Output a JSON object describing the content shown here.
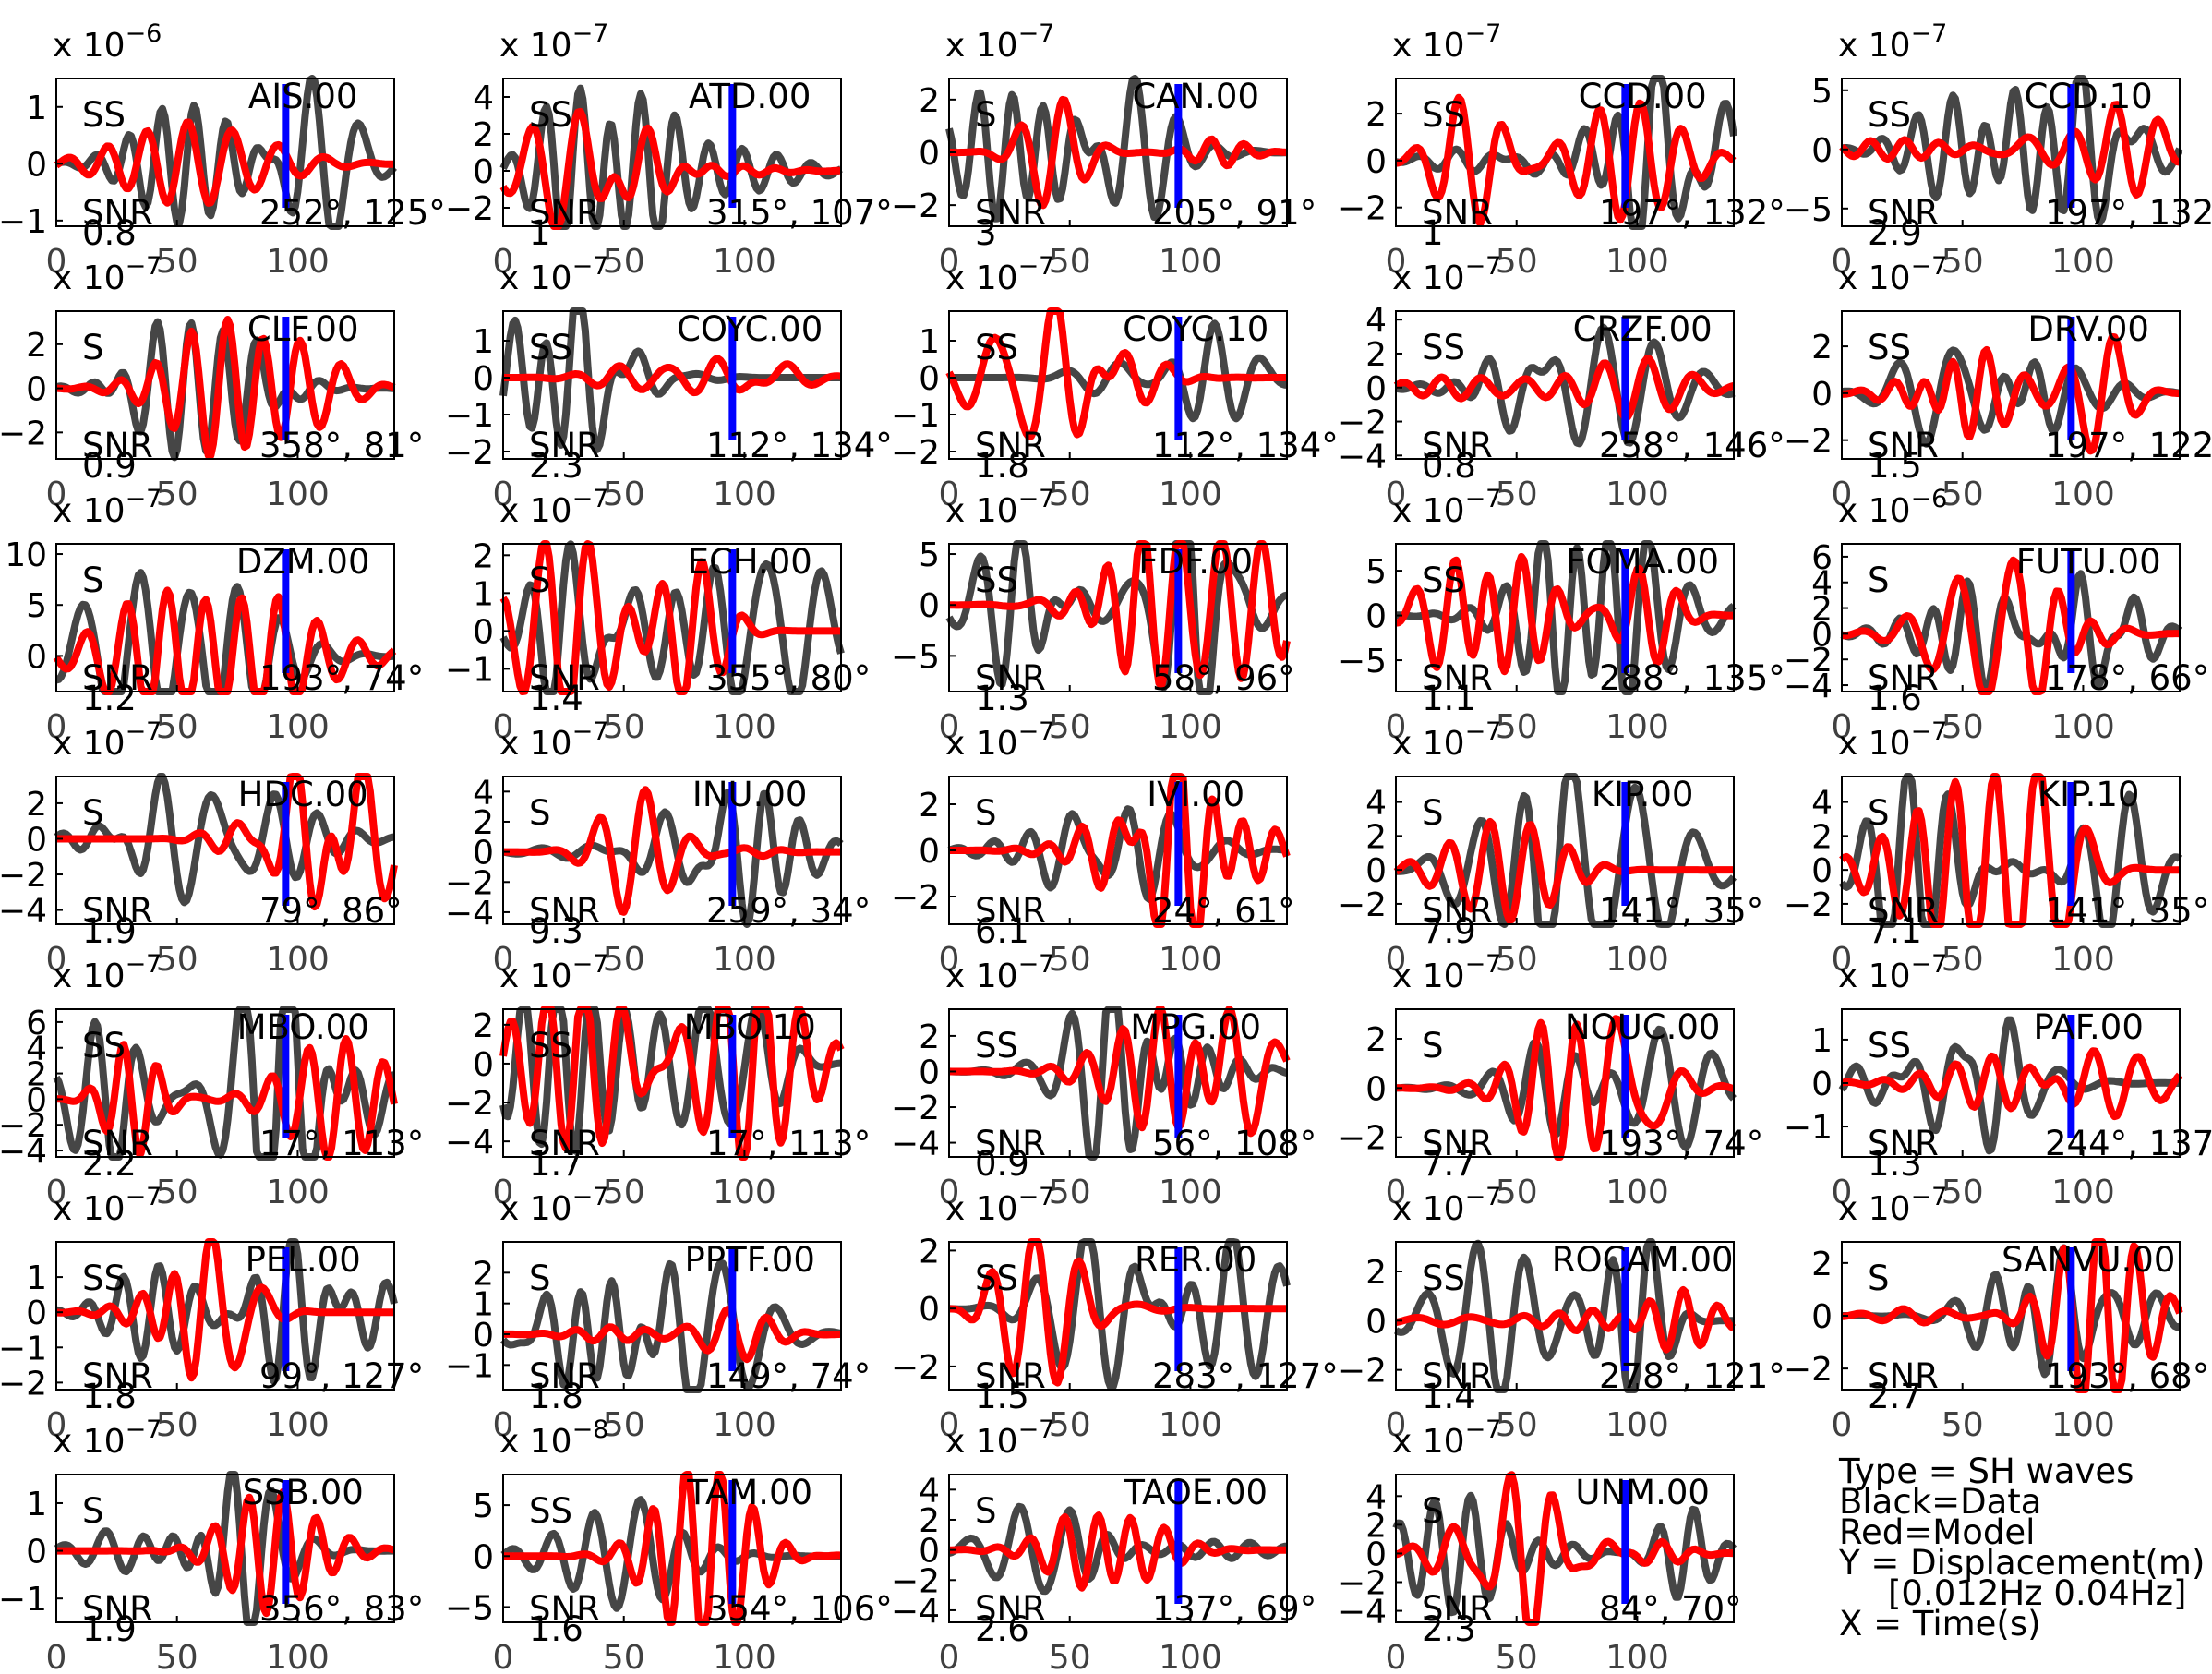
{
  "legend": {
    "type": "Type = SH waves",
    "black": "Black=Data",
    "red": "Red=Model",
    "y": "Y = Displacement(m)",
    "band": "[0.012Hz 0.04Hz]",
    "x": "X = Time(s)"
  },
  "colors": {
    "data": "#464646",
    "model": "#ff0000",
    "pick": "#0000ff",
    "axis": "#000000"
  },
  "chart_data": {
    "type": "line",
    "grid": false,
    "x_ticks": [
      "0",
      "50",
      "100"
    ],
    "xlim": [
      0,
      140
    ],
    "pick_time": 95,
    "panels": [
      {
        "station": "AIS.00",
        "phase": "SS",
        "snr": "0.8",
        "azimuth": "252",
        "distance": "125",
        "exponent": "-6",
        "yticks": [
          "1",
          "0",
          "−1"
        ],
        "ylim": [
          -1.1,
          1.5
        ]
      },
      {
        "station": "ATD.00",
        "phase": "SS",
        "snr": "1",
        "azimuth": "315",
        "distance": "107",
        "exponent": "-7",
        "yticks": [
          "4",
          "2",
          "0",
          "−2"
        ],
        "ylim": [
          -3,
          5
        ]
      },
      {
        "station": "CAN.00",
        "phase": "S",
        "snr": "3",
        "azimuth": "205",
        "distance": "91",
        "exponent": "-7",
        "yticks": [
          "2",
          "0",
          "−2"
        ],
        "ylim": [
          -2.8,
          2.8
        ]
      },
      {
        "station": "CCD.00",
        "phase": "SS",
        "snr": "1",
        "azimuth": "197",
        "distance": "132",
        "exponent": "-7",
        "yticks": [
          "2",
          "0",
          "−2"
        ],
        "ylim": [
          -2.8,
          3.5
        ]
      },
      {
        "station": "CCD.10",
        "phase": "SS",
        "snr": "2.9",
        "azimuth": "197",
        "distance": "132",
        "exponent": "-7",
        "yticks": [
          "5",
          "0",
          "−5"
        ],
        "ylim": [
          -6.5,
          6
        ]
      },
      {
        "station": "CLF.00",
        "phase": "S",
        "snr": "0.9",
        "azimuth": "358",
        "distance": "81",
        "exponent": "-7",
        "yticks": [
          "2",
          "0",
          "−2"
        ],
        "ylim": [
          -3.2,
          3.5
        ]
      },
      {
        "station": "COYC.00",
        "phase": "SS",
        "snr": "2.3",
        "azimuth": "112",
        "distance": "134",
        "exponent": "-7",
        "yticks": [
          "1",
          "0",
          "−1",
          "−2"
        ],
        "ylim": [
          -2.2,
          1.8
        ]
      },
      {
        "station": "COYC.10",
        "phase": "SS",
        "snr": "1.8",
        "azimuth": "112",
        "distance": "134",
        "exponent": "-7",
        "yticks": [
          "1",
          "0",
          "−1",
          "−2"
        ],
        "ylim": [
          -2.2,
          1.8
        ]
      },
      {
        "station": "CRZF.00",
        "phase": "SS",
        "snr": "0.8",
        "azimuth": "258",
        "distance": "146",
        "exponent": "-7",
        "yticks": [
          "4",
          "2",
          "0",
          "−2",
          "−4"
        ],
        "ylim": [
          -4.2,
          4.5
        ]
      },
      {
        "station": "DRV.00",
        "phase": "SS",
        "snr": "1.5",
        "azimuth": "197",
        "distance": "122",
        "exponent": "-7",
        "yticks": [
          "2",
          "0",
          "−2"
        ],
        "ylim": [
          -2.8,
          3.5
        ]
      },
      {
        "station": "DZM.00",
        "phase": "S",
        "snr": "1.2",
        "azimuth": "193",
        "distance": "74",
        "exponent": "-7",
        "yticks": [
          "10",
          "5",
          "0"
        ],
        "ylim": [
          -3.5,
          11
        ]
      },
      {
        "station": "ECH.00",
        "phase": "S",
        "snr": "1.4",
        "azimuth": "355",
        "distance": "80",
        "exponent": "-7",
        "yticks": [
          "2",
          "1",
          "0",
          "−1"
        ],
        "ylim": [
          -1.6,
          2.3
        ]
      },
      {
        "station": "FDF.00",
        "phase": "SS",
        "snr": "1.3",
        "azimuth": "58",
        "distance": "96",
        "exponent": "-7",
        "yticks": [
          "5",
          "0",
          "−5"
        ],
        "ylim": [
          -8.5,
          6
        ]
      },
      {
        "station": "FOMA.00",
        "phase": "SS",
        "snr": "1.1",
        "azimuth": "288",
        "distance": "135",
        "exponent": "-7",
        "yticks": [
          "5",
          "0",
          "−5"
        ],
        "ylim": [
          -8.5,
          8
        ]
      },
      {
        "station": "FUTU.00",
        "phase": "S",
        "snr": "1.6",
        "azimuth": "178",
        "distance": "66",
        "exponent": "-6",
        "yticks": [
          "6",
          "4",
          "2",
          "0",
          "−2",
          "−4"
        ],
        "ylim": [
          -4.5,
          7
        ]
      },
      {
        "station": "HDC.00",
        "phase": "S",
        "snr": "1.9",
        "azimuth": "79",
        "distance": "86",
        "exponent": "-7",
        "yticks": [
          "2",
          "0",
          "−2",
          "−4"
        ],
        "ylim": [
          -4.8,
          3.5
        ]
      },
      {
        "station": "INU.00",
        "phase": "S",
        "snr": "9.3",
        "azimuth": "259",
        "distance": "34",
        "exponent": "-7",
        "yticks": [
          "4",
          "2",
          "0",
          "−2",
          "−4"
        ],
        "ylim": [
          -4.8,
          5
        ]
      },
      {
        "station": "IVI.00",
        "phase": "S",
        "snr": "6.1",
        "azimuth": "24",
        "distance": "61",
        "exponent": "-7",
        "yticks": [
          "2",
          "0",
          "−2"
        ],
        "ylim": [
          -3.2,
          3.2
        ]
      },
      {
        "station": "KIP.00",
        "phase": "S",
        "snr": "7.9",
        "azimuth": "141",
        "distance": "35",
        "exponent": "-7",
        "yticks": [
          "4",
          "2",
          "0",
          "−2"
        ],
        "ylim": [
          -3.2,
          5.5
        ]
      },
      {
        "station": "KIP.10",
        "phase": "S",
        "snr": "7.1",
        "azimuth": "141",
        "distance": "35",
        "exponent": "-7",
        "yticks": [
          "4",
          "2",
          "0",
          "−2"
        ],
        "ylim": [
          -3.2,
          5.5
        ]
      },
      {
        "station": "MBO.00",
        "phase": "SS",
        "snr": "2.2",
        "azimuth": "17",
        "distance": "113",
        "exponent": "-7",
        "yticks": [
          "6",
          "4",
          "2",
          "0",
          "−2",
          "−4"
        ],
        "ylim": [
          -4.5,
          7
        ]
      },
      {
        "station": "MBO.10",
        "phase": "SS",
        "snr": "1.7",
        "azimuth": "17",
        "distance": "113",
        "exponent": "-7",
        "yticks": [
          "2",
          "0",
          "−2",
          "−4"
        ],
        "ylim": [
          -4.8,
          2.8
        ]
      },
      {
        "station": "MPG.00",
        "phase": "SS",
        "snr": "0.9",
        "azimuth": "56",
        "distance": "108",
        "exponent": "-7",
        "yticks": [
          "2",
          "0",
          "−2",
          "−4"
        ],
        "ylim": [
          -4.8,
          3.5
        ]
      },
      {
        "station": "NOUC.00",
        "phase": "S",
        "snr": "7.7",
        "azimuth": "193",
        "distance": "74",
        "exponent": "-7",
        "yticks": [
          "2",
          "0",
          "−2"
        ],
        "ylim": [
          -2.8,
          3.2
        ]
      },
      {
        "station": "PAF.00",
        "phase": "SS",
        "snr": "1.3",
        "azimuth": "244",
        "distance": "137",
        "exponent": "-7",
        "yticks": [
          "1",
          "0",
          "−1"
        ],
        "ylim": [
          -1.7,
          1.7
        ]
      },
      {
        "station": "PEL.00",
        "phase": "SS",
        "snr": "1.8",
        "azimuth": "99",
        "distance": "127",
        "exponent": "-7",
        "yticks": [
          "1",
          "0",
          "−1",
          "−2"
        ],
        "ylim": [
          -2.2,
          2
        ]
      },
      {
        "station": "PPTF.00",
        "phase": "S",
        "snr": "1.8",
        "azimuth": "149",
        "distance": "74",
        "exponent": "-7",
        "yticks": [
          "2",
          "1",
          "0",
          "−1"
        ],
        "ylim": [
          -1.8,
          3
        ]
      },
      {
        "station": "RER.00",
        "phase": "SS",
        "snr": "1.5",
        "azimuth": "283",
        "distance": "127",
        "exponent": "-7",
        "yticks": [
          "2",
          "0",
          "−2"
        ],
        "ylim": [
          -2.8,
          2.3
        ]
      },
      {
        "station": "ROCAM.00",
        "phase": "SS",
        "snr": "1.4",
        "azimuth": "278",
        "distance": "121",
        "exponent": "-7",
        "yticks": [
          "2",
          "0",
          "−2"
        ],
        "ylim": [
          -2.8,
          3.2
        ]
      },
      {
        "station": "SANVU.00",
        "phase": "S",
        "snr": "2.7",
        "azimuth": "193",
        "distance": "68",
        "exponent": "-7",
        "yticks": [
          "2",
          "0",
          "−2"
        ],
        "ylim": [
          -2.8,
          2.8
        ]
      },
      {
        "station": "SSB.00",
        "phase": "S",
        "snr": "1.9",
        "azimuth": "356",
        "distance": "83",
        "exponent": "-7",
        "yticks": [
          "1",
          "0",
          "−1"
        ],
        "ylim": [
          -1.5,
          1.6
        ]
      },
      {
        "station": "TAM.00",
        "phase": "SS",
        "snr": "1.6",
        "azimuth": "354",
        "distance": "106",
        "exponent": "-8",
        "yticks": [
          "5",
          "0",
          "−5"
        ],
        "ylim": [
          -6.5,
          8
        ]
      },
      {
        "station": "TAOE.00",
        "phase": "S",
        "snr": "2.6",
        "azimuth": "137",
        "distance": "69",
        "exponent": "-7",
        "yticks": [
          "4",
          "2",
          "0",
          "−2",
          "−4"
        ],
        "ylim": [
          -4.8,
          5
        ]
      },
      {
        "station": "UNM.00",
        "phase": "S",
        "snr": "2.3",
        "azimuth": "84",
        "distance": "70",
        "exponent": "-7",
        "yticks": [
          "4",
          "2",
          "0",
          "−2",
          "−4"
        ],
        "ylim": [
          -4.8,
          5.5
        ]
      }
    ]
  }
}
